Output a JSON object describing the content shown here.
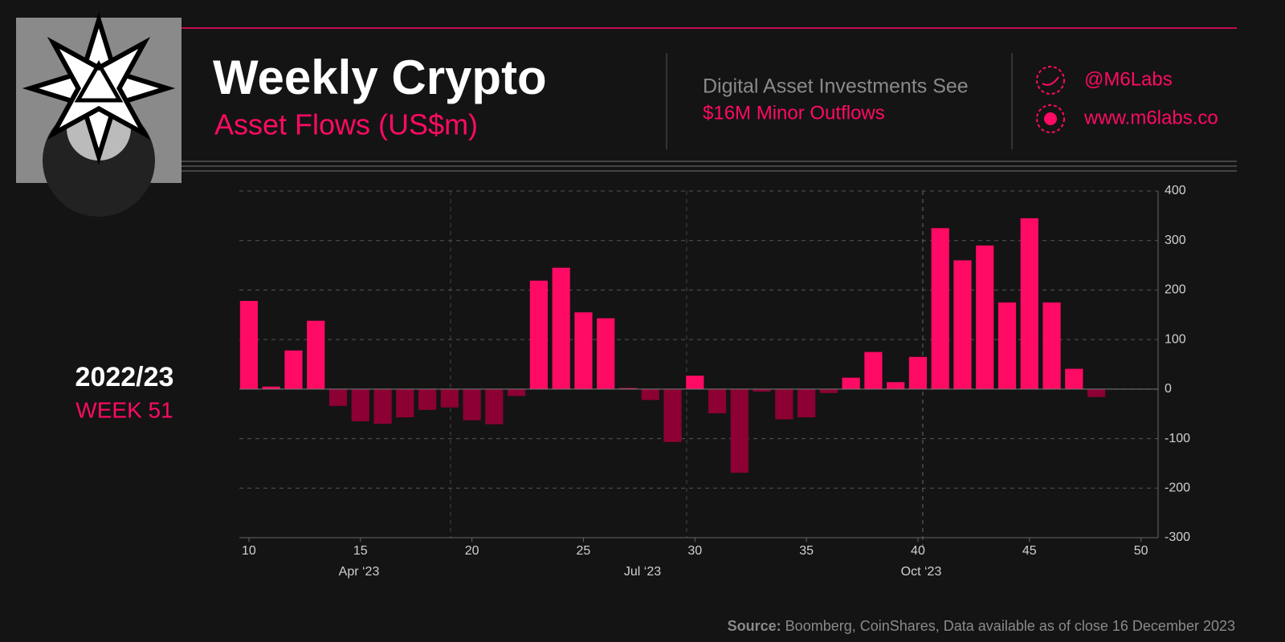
{
  "chart_data": {
    "type": "bar",
    "title": "Weekly Crypto",
    "subtitle": "Asset Flows (US$m)",
    "headline": "Digital Asset Investments See",
    "headline_highlight": "$16M Minor Outflows",
    "handle": "@M6Labs",
    "website": "www.m6labs.co",
    "period": "2022/23",
    "week": "WEEK 51",
    "source_label": "Source:",
    "source": "Boomberg, CoinShares, Data available as of close 16 December 2023",
    "months": [
      "Apr ‘23",
      "Jul ‘23",
      "Oct ‘23"
    ],
    "x": [
      10,
      11,
      12,
      13,
      14,
      15,
      16,
      17,
      18,
      19,
      20,
      21,
      22,
      23,
      24,
      25,
      26,
      27,
      28,
      29,
      30,
      31,
      32,
      33,
      34,
      35,
      36,
      37,
      38,
      39,
      40,
      41,
      42,
      43,
      44,
      45,
      46,
      47,
      48
    ],
    "values": [
      178,
      5,
      78,
      138,
      -34,
      -65,
      -70,
      -57,
      -42,
      -37,
      -63,
      -71,
      -14,
      219,
      245,
      155,
      143,
      2,
      -22,
      -107,
      27,
      -49,
      -169,
      -5,
      -61,
      -57,
      -8,
      23,
      75,
      14,
      65,
      325,
      260,
      290,
      175,
      345,
      175,
      41,
      -16
    ],
    "colors": {
      "positive": "#ff0a64",
      "negative": "#8c0034"
    },
    "xlim": [
      9.57,
      50.77
    ],
    "xticks": [
      10,
      15,
      20,
      25,
      30,
      35,
      40,
      45,
      50
    ],
    "ylim": [
      -300,
      400
    ],
    "yticks": [
      400,
      300,
      200,
      100,
      0,
      -100,
      -200,
      -300
    ],
    "grid": true
  }
}
